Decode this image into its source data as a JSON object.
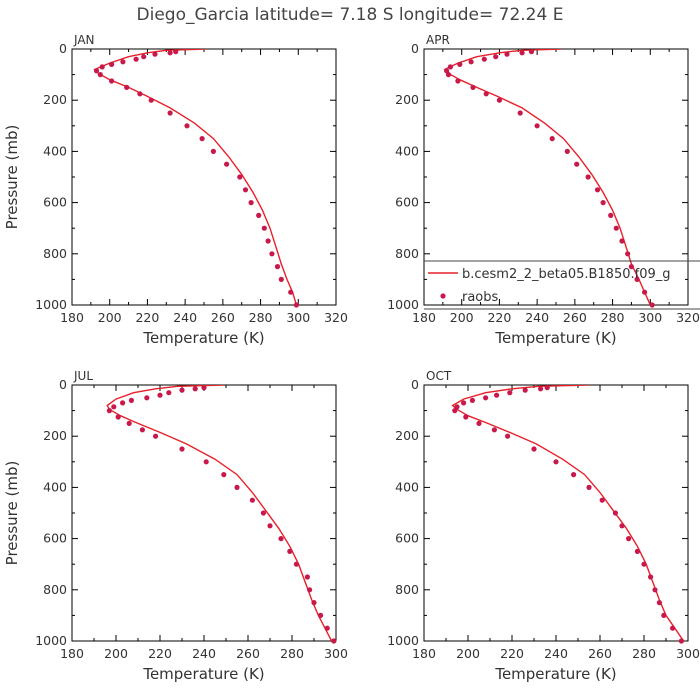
{
  "title": "Diego_Garcia  latitude= 7.18 S longitude= 72.24 E",
  "legend": {
    "model_label": "b.cesm2_2_beta05.B1850.f09_g",
    "obs_label": "raobs"
  },
  "colors": {
    "model": "#e8202a",
    "obs": "#c8194a"
  },
  "chart_data": [
    {
      "type": "line",
      "panel": "JAN",
      "xlabel": "Temperature (K)",
      "ylabel": "Pressure (mb)",
      "xlim": [
        180,
        320
      ],
      "ylim": [
        1000,
        0
      ],
      "xticks": [
        180,
        200,
        220,
        240,
        260,
        280,
        300,
        320
      ],
      "yticks": [
        0,
        200,
        400,
        600,
        800,
        1000
      ],
      "series": [
        {
          "name": "b.cesm2_2_beta05.B1850.f09_g",
          "kind": "line",
          "points": [
            [
              251,
              0
            ],
            [
              230,
              5
            ],
            [
              220,
              15
            ],
            [
              210,
              30
            ],
            [
              200,
              55
            ],
            [
              192,
              80
            ],
            [
              194,
              95
            ],
            [
              200,
              120
            ],
            [
              210,
              150
            ],
            [
              220,
              185
            ],
            [
              232,
              230
            ],
            [
              245,
              290
            ],
            [
              255,
              350
            ],
            [
              263,
              420
            ],
            [
              270,
              490
            ],
            [
              276,
              560
            ],
            [
              281,
              630
            ],
            [
              285,
              700
            ],
            [
              288,
              770
            ],
            [
              291,
              840
            ],
            [
              294,
              900
            ],
            [
              297,
              950
            ],
            [
              299,
              1000
            ]
          ]
        },
        {
          "name": "raobs",
          "kind": "scatter",
          "points": [
            [
              235,
              10
            ],
            [
              232,
              15
            ],
            [
              224,
              20
            ],
            [
              218,
              30
            ],
            [
              214,
              40
            ],
            [
              207,
              50
            ],
            [
              201,
              60
            ],
            [
              196,
              70
            ],
            [
              193,
              85
            ],
            [
              195,
              100
            ],
            [
              201,
              125
            ],
            [
              209,
              150
            ],
            [
              216,
              175
            ],
            [
              222,
              200
            ],
            [
              232,
              250
            ],
            [
              241,
              300
            ],
            [
              249,
              350
            ],
            [
              255,
              400
            ],
            [
              262,
              450
            ],
            [
              269,
              500
            ],
            [
              272,
              550
            ],
            [
              275,
              600
            ],
            [
              279,
              650
            ],
            [
              282,
              700
            ],
            [
              284,
              750
            ],
            [
              286,
              800
            ],
            [
              289,
              850
            ],
            [
              291,
              900
            ],
            [
              296,
              950
            ],
            [
              299,
              1000
            ]
          ]
        }
      ]
    },
    {
      "type": "line",
      "panel": "APR",
      "xlabel": "Temperature (K)",
      "ylabel": "",
      "xlim": [
        180,
        320
      ],
      "ylim": [
        1000,
        0
      ],
      "xticks": [
        180,
        200,
        220,
        240,
        260,
        280,
        300,
        320
      ],
      "yticks": [
        0,
        200,
        400,
        600,
        800,
        1000
      ],
      "series": [
        {
          "name": "b.cesm2_2_beta05.B1850.f09_g",
          "kind": "line",
          "points": [
            [
              253,
              0
            ],
            [
              232,
              5
            ],
            [
              220,
              15
            ],
            [
              208,
              30
            ],
            [
              198,
              55
            ],
            [
              191,
              80
            ],
            [
              193,
              95
            ],
            [
              199,
              120
            ],
            [
              208,
              150
            ],
            [
              219,
              185
            ],
            [
              232,
              230
            ],
            [
              244,
              290
            ],
            [
              254,
              350
            ],
            [
              262,
              420
            ],
            [
              269,
              490
            ],
            [
              275,
              560
            ],
            [
              280,
              630
            ],
            [
              284,
              700
            ],
            [
              287,
              770
            ],
            [
              290,
              840
            ],
            [
              294,
              900
            ],
            [
              297,
              950
            ],
            [
              300,
              1000
            ]
          ]
        },
        {
          "name": "raobs",
          "kind": "scatter",
          "points": [
            [
              237,
              10
            ],
            [
              232,
              15
            ],
            [
              224,
              20
            ],
            [
              218,
              30
            ],
            [
              212,
              40
            ],
            [
              205,
              50
            ],
            [
              199,
              60
            ],
            [
              194,
              70
            ],
            [
              192,
              85
            ],
            [
              193,
              100
            ],
            [
              198,
              125
            ],
            [
              206,
              150
            ],
            [
              213,
              175
            ],
            [
              220,
              200
            ],
            [
              231,
              250
            ],
            [
              240,
              300
            ],
            [
              248,
              350
            ],
            [
              256,
              400
            ],
            [
              261,
              450
            ],
            [
              267,
              500
            ],
            [
              272,
              550
            ],
            [
              275,
              600
            ],
            [
              279,
              650
            ],
            [
              282,
              700
            ],
            [
              285,
              750
            ],
            [
              288,
              800
            ],
            [
              290,
              850
            ],
            [
              293,
              900
            ],
            [
              297,
              950
            ],
            [
              301,
              1000
            ]
          ]
        }
      ]
    },
    {
      "type": "line",
      "panel": "JUL",
      "xlabel": "Temperature (K)",
      "ylabel": "Pressure (mb)",
      "xlim": [
        180,
        300
      ],
      "ylim": [
        1000,
        0
      ],
      "xticks": [
        180,
        200,
        220,
        240,
        260,
        280,
        300
      ],
      "yticks": [
        0,
        200,
        400,
        600,
        800,
        1000
      ],
      "series": [
        {
          "name": "b.cesm2_2_beta05.B1850.f09_g",
          "kind": "line",
          "points": [
            [
              249,
              0
            ],
            [
              228,
              5
            ],
            [
              218,
              15
            ],
            [
              208,
              30
            ],
            [
              200,
              55
            ],
            [
              196,
              80
            ],
            [
              197,
              95
            ],
            [
              202,
              120
            ],
            [
              210,
              150
            ],
            [
              220,
              185
            ],
            [
              232,
              230
            ],
            [
              245,
              290
            ],
            [
              255,
              350
            ],
            [
              262,
              420
            ],
            [
              268,
              490
            ],
            [
              274,
              560
            ],
            [
              279,
              630
            ],
            [
              283,
              700
            ],
            [
              286,
              770
            ],
            [
              289,
              840
            ],
            [
              292,
              900
            ],
            [
              295,
              950
            ],
            [
              298,
              1000
            ]
          ]
        },
        {
          "name": "raobs",
          "kind": "scatter",
          "points": [
            [
              240,
              10
            ],
            [
              236,
              15
            ],
            [
              230,
              20
            ],
            [
              224,
              30
            ],
            [
              220,
              40
            ],
            [
              214,
              50
            ],
            [
              207,
              60
            ],
            [
              203,
              70
            ],
            [
              199,
              85
            ],
            [
              197,
              100
            ],
            [
              201,
              125
            ],
            [
              206,
              150
            ],
            [
              212,
              175
            ],
            [
              218,
              200
            ],
            [
              230,
              250
            ],
            [
              241,
              300
            ],
            [
              249,
              350
            ],
            [
              255,
              400
            ],
            [
              262,
              450
            ],
            [
              267,
              500
            ],
            [
              270,
              550
            ],
            [
              275,
              600
            ],
            [
              279,
              650
            ],
            [
              282,
              700
            ],
            [
              287,
              750
            ],
            [
              288,
              800
            ],
            [
              290,
              850
            ],
            [
              293,
              900
            ],
            [
              296,
              950
            ],
            [
              299,
              1000
            ]
          ]
        }
      ]
    },
    {
      "type": "line",
      "panel": "OCT",
      "xlabel": "Temperature (K)",
      "ylabel": "",
      "xlim": [
        180,
        300
      ],
      "ylim": [
        1000,
        0
      ],
      "xticks": [
        180,
        200,
        220,
        240,
        260,
        280,
        300
      ],
      "yticks": [
        0,
        200,
        400,
        600,
        800,
        1000
      ],
      "series": [
        {
          "name": "b.cesm2_2_beta05.B1850.f09_g",
          "kind": "line",
          "points": [
            [
              255,
              0
            ],
            [
              232,
              5
            ],
            [
              220,
              15
            ],
            [
              208,
              30
            ],
            [
              198,
              55
            ],
            [
              193,
              80
            ],
            [
              195,
              95
            ],
            [
              200,
              120
            ],
            [
              209,
              150
            ],
            [
              219,
              185
            ],
            [
              231,
              230
            ],
            [
              243,
              290
            ],
            [
              253,
              350
            ],
            [
              260,
              420
            ],
            [
              266,
              490
            ],
            [
              272,
              560
            ],
            [
              277,
              630
            ],
            [
              281,
              700
            ],
            [
              284,
              770
            ],
            [
              287,
              840
            ],
            [
              290,
              900
            ],
            [
              294,
              950
            ],
            [
              298,
              1000
            ]
          ]
        },
        {
          "name": "raobs",
          "kind": "scatter",
          "points": [
            [
              236,
              10
            ],
            [
              233,
              15
            ],
            [
              226,
              20
            ],
            [
              219,
              30
            ],
            [
              213,
              40
            ],
            [
              208,
              50
            ],
            [
              202,
              60
            ],
            [
              198,
              70
            ],
            [
              195,
              85
            ],
            [
              194,
              100
            ],
            [
              199,
              125
            ],
            [
              205,
              150
            ],
            [
              212,
              175
            ],
            [
              218,
              200
            ],
            [
              230,
              250
            ],
            [
              240,
              300
            ],
            [
              248,
              350
            ],
            [
              255,
              400
            ],
            [
              261,
              450
            ],
            [
              267,
              500
            ],
            [
              270,
              550
            ],
            [
              273,
              600
            ],
            [
              277,
              650
            ],
            [
              280,
              700
            ],
            [
              283,
              750
            ],
            [
              285,
              800
            ],
            [
              287,
              850
            ],
            [
              289,
              900
            ],
            [
              293,
              950
            ],
            [
              297,
              1000
            ]
          ]
        }
      ]
    }
  ]
}
